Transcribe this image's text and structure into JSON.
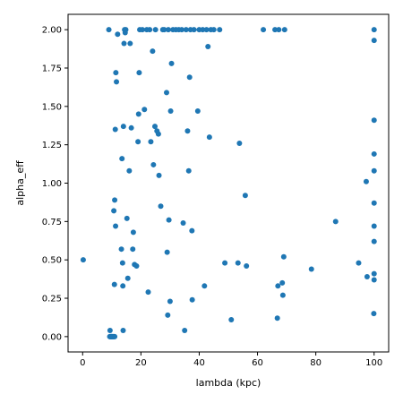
{
  "chart_data": {
    "type": "scatter",
    "title": "",
    "xlabel": "lambda (kpc)",
    "ylabel": "alpha_eff",
    "xlim": [
      -5,
      105
    ],
    "ylim": [
      -0.1,
      2.1
    ],
    "x_ticks": [
      0,
      20,
      40,
      60,
      80,
      100
    ],
    "y_ticks": [
      0.0,
      0.25,
      0.5,
      0.75,
      1.0,
      1.25,
      1.5,
      1.75,
      2.0
    ],
    "x_tick_labels": [
      "0",
      "20",
      "40",
      "60",
      "80",
      "100"
    ],
    "y_tick_labels": [
      "0.00",
      "0.25",
      "0.50",
      "0.75",
      "1.00",
      "1.25",
      "1.50",
      "1.75",
      "2.00"
    ],
    "grid": false,
    "marker_color": "#1f77b4",
    "series": [
      {
        "points": [
          [
            0.2,
            0.5
          ],
          [
            9.0,
            2.0
          ],
          [
            9.3,
            0.0
          ],
          [
            9.4,
            0.04
          ],
          [
            9.5,
            0.0
          ],
          [
            9.6,
            0.0
          ],
          [
            9.7,
            0.0
          ],
          [
            9.8,
            0.0
          ],
          [
            9.9,
            0.0
          ],
          [
            10.0,
            0.0
          ],
          [
            10.1,
            0.0
          ],
          [
            10.2,
            0.0
          ],
          [
            10.4,
            0.0
          ],
          [
            10.6,
            0.0
          ],
          [
            10.8,
            0.0
          ],
          [
            11.0,
            0.0
          ],
          [
            10.7,
            0.82
          ],
          [
            10.9,
            0.34
          ],
          [
            11.0,
            0.89
          ],
          [
            11.2,
            1.35
          ],
          [
            11.3,
            0.72
          ],
          [
            11.4,
            1.72
          ],
          [
            11.6,
            1.66
          ],
          [
            12.0,
            1.97
          ],
          [
            13.3,
            0.57
          ],
          [
            13.5,
            1.16
          ],
          [
            13.7,
            0.48
          ],
          [
            13.8,
            0.33
          ],
          [
            13.9,
            0.04
          ],
          [
            14.0,
            1.37
          ],
          [
            14.2,
            1.91
          ],
          [
            14.4,
            2.0
          ],
          [
            14.6,
            1.98
          ],
          [
            14.8,
            2.0
          ],
          [
            15.2,
            0.77
          ],
          [
            15.5,
            0.38
          ],
          [
            16.0,
            1.08
          ],
          [
            16.3,
            1.91
          ],
          [
            16.7,
            1.36
          ],
          [
            17.2,
            0.57
          ],
          [
            17.4,
            0.68
          ],
          [
            17.8,
            0.47
          ],
          [
            18.5,
            0.46
          ],
          [
            19.0,
            1.27
          ],
          [
            19.2,
            1.45
          ],
          [
            19.4,
            1.72
          ],
          [
            19.6,
            2.0
          ],
          [
            20.5,
            2.0
          ],
          [
            21.2,
            1.48
          ],
          [
            22.0,
            2.0
          ],
          [
            22.5,
            0.29
          ],
          [
            23.0,
            2.0
          ],
          [
            23.4,
            1.27
          ],
          [
            24.0,
            1.86
          ],
          [
            24.3,
            1.12
          ],
          [
            24.8,
            1.37
          ],
          [
            25.0,
            2.0
          ],
          [
            25.5,
            1.34
          ],
          [
            26.0,
            1.32
          ],
          [
            26.2,
            1.05
          ],
          [
            26.8,
            0.85
          ],
          [
            27.5,
            2.0
          ],
          [
            28.0,
            2.0
          ],
          [
            28.8,
            1.59
          ],
          [
            29.0,
            0.55
          ],
          [
            29.2,
            0.14
          ],
          [
            29.4,
            2.0
          ],
          [
            29.6,
            0.76
          ],
          [
            30.0,
            0.23
          ],
          [
            30.2,
            1.47
          ],
          [
            30.5,
            1.78
          ],
          [
            31.0,
            2.0
          ],
          [
            32.0,
            2.0
          ],
          [
            33.0,
            2.0
          ],
          [
            34.0,
            2.0
          ],
          [
            34.5,
            0.74
          ],
          [
            35.0,
            0.04
          ],
          [
            35.5,
            2.0
          ],
          [
            36.0,
            1.34
          ],
          [
            36.4,
            1.08
          ],
          [
            36.7,
            1.69
          ],
          [
            37.0,
            2.0
          ],
          [
            37.6,
            0.24
          ],
          [
            37.5,
            0.69
          ],
          [
            38.2,
            2.0
          ],
          [
            39.5,
            1.47
          ],
          [
            40.0,
            2.0
          ],
          [
            41.2,
            2.0
          ],
          [
            41.8,
            0.33
          ],
          [
            42.5,
            2.0
          ],
          [
            43.0,
            1.89
          ],
          [
            43.5,
            1.3
          ],
          [
            44.0,
            2.0
          ],
          [
            45.0,
            2.0
          ],
          [
            47.0,
            2.0
          ],
          [
            48.8,
            0.48
          ],
          [
            51.0,
            0.11
          ],
          [
            53.3,
            0.48
          ],
          [
            53.8,
            1.26
          ],
          [
            55.8,
            0.92
          ],
          [
            56.2,
            0.46
          ],
          [
            62.0,
            2.0
          ],
          [
            66.0,
            2.0
          ],
          [
            66.8,
            0.12
          ],
          [
            67.0,
            0.33
          ],
          [
            67.3,
            2.0
          ],
          [
            68.5,
            0.35
          ],
          [
            68.7,
            0.27
          ],
          [
            69.0,
            0.52
          ],
          [
            69.3,
            2.0
          ],
          [
            78.5,
            0.44
          ],
          [
            86.8,
            0.75
          ],
          [
            94.7,
            0.48
          ],
          [
            97.3,
            1.01
          ],
          [
            97.6,
            0.39
          ],
          [
            99.9,
            0.15
          ],
          [
            100.0,
            0.37
          ],
          [
            100.0,
            0.41
          ],
          [
            100.0,
            0.62
          ],
          [
            100.0,
            0.72
          ],
          [
            100.0,
            0.87
          ],
          [
            100.0,
            1.08
          ],
          [
            100.0,
            1.19
          ],
          [
            100.0,
            1.41
          ],
          [
            100.0,
            1.93
          ],
          [
            100.0,
            2.0
          ]
        ]
      }
    ]
  }
}
